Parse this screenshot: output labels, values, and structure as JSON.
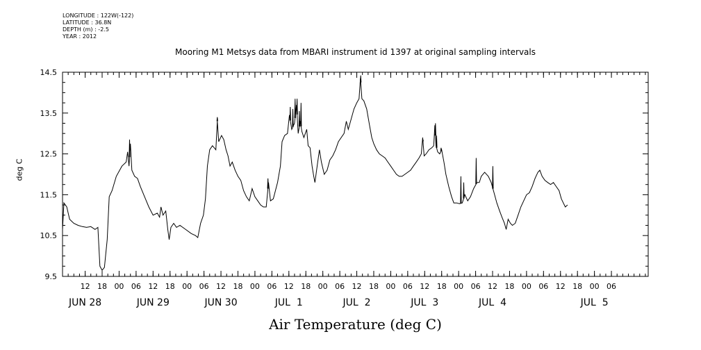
{
  "header": {
    "lines": [
      "LONGITUDE : 122W(-122)",
      "LATITUDE : 36.8N",
      "DEPTH (m) : -2.5",
      "YEAR : 2012"
    ]
  },
  "chart_data": {
    "type": "line",
    "title": "Mooring M1 Metsys data from MBARI instrument id 1397 at original sampling intervals",
    "xlabel": "Air Temperature (deg C)",
    "ylabel": "deg C",
    "ylim": [
      9.5,
      14.5
    ],
    "y_ticks": [
      "9.5",
      "10.5",
      "11.5",
      "12.5",
      "13.5",
      "14.5"
    ],
    "x_range_hours": [
      4,
      211
    ],
    "hour_ticks": [
      {
        "h": 12,
        "label": "12"
      },
      {
        "h": 18,
        "label": "18"
      },
      {
        "h": 24,
        "label": "00"
      },
      {
        "h": 30,
        "label": "06"
      },
      {
        "h": 36,
        "label": "12"
      },
      {
        "h": 42,
        "label": "18"
      },
      {
        "h": 48,
        "label": "00"
      },
      {
        "h": 54,
        "label": "06"
      },
      {
        "h": 60,
        "label": "12"
      },
      {
        "h": 66,
        "label": "18"
      },
      {
        "h": 72,
        "label": "00"
      },
      {
        "h": 78,
        "label": "06"
      },
      {
        "h": 84,
        "label": "12"
      },
      {
        "h": 90,
        "label": "18"
      },
      {
        "h": 96,
        "label": "00"
      },
      {
        "h": 102,
        "label": "06"
      },
      {
        "h": 108,
        "label": "12"
      },
      {
        "h": 114,
        "label": "18"
      },
      {
        "h": 120,
        "label": "00"
      },
      {
        "h": 126,
        "label": "06"
      },
      {
        "h": 132,
        "label": "12"
      },
      {
        "h": 138,
        "label": "18"
      },
      {
        "h": 144,
        "label": "00"
      },
      {
        "h": 150,
        "label": "06"
      },
      {
        "h": 156,
        "label": "12"
      },
      {
        "h": 162,
        "label": "18"
      },
      {
        "h": 168,
        "label": "00"
      },
      {
        "h": 174,
        "label": "06"
      },
      {
        "h": 180,
        "label": "12"
      },
      {
        "h": 186,
        "label": "18"
      },
      {
        "h": 192,
        "label": "00"
      },
      {
        "h": 198,
        "label": "06"
      }
    ],
    "day_labels": [
      {
        "h": 12,
        "label": "JUN 28"
      },
      {
        "h": 36,
        "label": "JUN 29"
      },
      {
        "h": 60,
        "label": "JUN 30"
      },
      {
        "h": 84,
        "label": "JUL  1"
      },
      {
        "h": 108,
        "label": "JUL  2"
      },
      {
        "h": 132,
        "label": "JUL  3"
      },
      {
        "h": 156,
        "label": "JUL  4"
      },
      {
        "h": 192,
        "label": "JUL  5"
      }
    ],
    "series": [
      {
        "values": [
          [
            4.0,
            10.65
          ],
          [
            4.5,
            11.3
          ],
          [
            5.5,
            11.2
          ],
          [
            6.5,
            10.9
          ],
          [
            8,
            10.8
          ],
          [
            9.5,
            10.75
          ],
          [
            11,
            10.72
          ],
          [
            12.5,
            10.7
          ],
          [
            14,
            10.72
          ],
          [
            15.5,
            10.65
          ],
          [
            16.5,
            10.7
          ],
          [
            17.2,
            9.75
          ],
          [
            18,
            9.65
          ],
          [
            18.8,
            9.72
          ],
          [
            19.8,
            10.4
          ],
          [
            20.5,
            11.45
          ],
          [
            21.5,
            11.6
          ],
          [
            23,
            11.95
          ],
          [
            25,
            12.2
          ],
          [
            26.5,
            12.3
          ],
          [
            27,
            12.55
          ],
          [
            27.5,
            12.2
          ],
          [
            28,
            12.75
          ],
          [
            28.5,
            12.1
          ],
          [
            29.5,
            11.95
          ],
          [
            30.5,
            11.9
          ],
          [
            31.5,
            11.7
          ],
          [
            33,
            11.45
          ],
          [
            34.5,
            11.2
          ],
          [
            36,
            11.0
          ],
          [
            37.5,
            11.05
          ],
          [
            38.3,
            10.95
          ],
          [
            38.8,
            11.2
          ],
          [
            39.5,
            11.0
          ],
          [
            40.5,
            11.1
          ],
          [
            41.2,
            10.65
          ],
          [
            41.7,
            10.4
          ],
          [
            42.3,
            10.7
          ],
          [
            43.3,
            10.8
          ],
          [
            44.3,
            10.7
          ],
          [
            45.5,
            10.75
          ],
          [
            47.5,
            10.65
          ],
          [
            49.5,
            10.55
          ],
          [
            51,
            10.5
          ],
          [
            51.8,
            10.45
          ],
          [
            52.8,
            10.8
          ],
          [
            53.8,
            11.0
          ],
          [
            54.5,
            11.4
          ],
          [
            55.2,
            12.2
          ],
          [
            56,
            12.6
          ],
          [
            57,
            12.7
          ],
          [
            58.2,
            12.6
          ],
          [
            58.7,
            13.3
          ],
          [
            59.2,
            12.8
          ],
          [
            60.2,
            12.95
          ],
          [
            61,
            12.85
          ],
          [
            61.8,
            12.6
          ],
          [
            62.5,
            12.45
          ],
          [
            63.2,
            12.2
          ],
          [
            64,
            12.3
          ],
          [
            65,
            12.1
          ],
          [
            66,
            11.95
          ],
          [
            67,
            11.85
          ],
          [
            68,
            11.6
          ],
          [
            69,
            11.45
          ],
          [
            70,
            11.35
          ],
          [
            71,
            11.65
          ],
          [
            72,
            11.45
          ],
          [
            73,
            11.35
          ],
          [
            74,
            11.25
          ],
          [
            75,
            11.2
          ],
          [
            76,
            11.2
          ],
          [
            76.8,
            11.8
          ],
          [
            77.5,
            11.35
          ],
          [
            78.5,
            11.4
          ],
          [
            80,
            11.8
          ],
          [
            81,
            12.2
          ],
          [
            81.6,
            12.8
          ],
          [
            82.5,
            12.95
          ],
          [
            83.5,
            13.0
          ],
          [
            84.2,
            13.45
          ],
          [
            85,
            13.1
          ],
          [
            86,
            13.25
          ],
          [
            86.7,
            13.7
          ],
          [
            87.3,
            13.0
          ],
          [
            88,
            13.3
          ],
          [
            88.6,
            13.05
          ],
          [
            89.3,
            12.9
          ],
          [
            90.3,
            13.1
          ],
          [
            90.8,
            12.7
          ],
          [
            91.5,
            12.65
          ],
          [
            92.2,
            12.2
          ],
          [
            92.8,
            11.95
          ],
          [
            93.2,
            11.8
          ],
          [
            94,
            12.2
          ],
          [
            94.8,
            12.6
          ],
          [
            95.5,
            12.3
          ],
          [
            96.5,
            12.0
          ],
          [
            97.5,
            12.1
          ],
          [
            98.5,
            12.35
          ],
          [
            99.5,
            12.45
          ],
          [
            100.5,
            12.6
          ],
          [
            101.5,
            12.8
          ],
          [
            102.5,
            12.9
          ],
          [
            103.5,
            13.0
          ],
          [
            104.3,
            13.3
          ],
          [
            105,
            13.1
          ],
          [
            106,
            13.35
          ],
          [
            107,
            13.6
          ],
          [
            108,
            13.75
          ],
          [
            108.8,
            13.85
          ],
          [
            109.3,
            14.35
          ],
          [
            109.8,
            13.85
          ],
          [
            110.5,
            13.8
          ],
          [
            111.5,
            13.6
          ],
          [
            112.5,
            13.2
          ],
          [
            113.3,
            12.9
          ],
          [
            114,
            12.75
          ],
          [
            115,
            12.6
          ],
          [
            116,
            12.5
          ],
          [
            117,
            12.45
          ],
          [
            118,
            12.4
          ],
          [
            119,
            12.3
          ],
          [
            120,
            12.2
          ],
          [
            121,
            12.1
          ],
          [
            122,
            12.0
          ],
          [
            123,
            11.95
          ],
          [
            124,
            11.95
          ],
          [
            125,
            12.0
          ],
          [
            126,
            12.05
          ],
          [
            127,
            12.1
          ],
          [
            128,
            12.2
          ],
          [
            129,
            12.3
          ],
          [
            130,
            12.4
          ],
          [
            130.8,
            12.5
          ],
          [
            131.3,
            12.9
          ],
          [
            131.8,
            12.45
          ],
          [
            132.5,
            12.5
          ],
          [
            133.5,
            12.6
          ],
          [
            134.5,
            12.65
          ],
          [
            135.2,
            12.7
          ],
          [
            135.6,
            13.2
          ],
          [
            136,
            12.7
          ],
          [
            136.6,
            12.55
          ],
          [
            137.3,
            12.5
          ],
          [
            138,
            12.6
          ],
          [
            138.8,
            12.3
          ],
          [
            139.5,
            12.0
          ],
          [
            140.5,
            11.7
          ],
          [
            141.5,
            11.45
          ],
          [
            142.3,
            11.3
          ],
          [
            143.3,
            11.3
          ],
          [
            144.3,
            11.28
          ],
          [
            145.3,
            11.3
          ],
          [
            146.2,
            11.5
          ],
          [
            147.2,
            11.35
          ],
          [
            148.2,
            11.45
          ],
          [
            149.3,
            11.65
          ],
          [
            150.5,
            11.8
          ],
          [
            151.3,
            11.8
          ],
          [
            152,
            11.95
          ],
          [
            153.2,
            12.05
          ],
          [
            154.5,
            11.95
          ],
          [
            155.5,
            11.8
          ],
          [
            156.5,
            11.55
          ],
          [
            157.5,
            11.3
          ],
          [
            158.5,
            11.1
          ],
          [
            159.3,
            10.95
          ],
          [
            160.2,
            10.8
          ],
          [
            160.8,
            10.65
          ],
          [
            161.5,
            10.9
          ],
          [
            162.3,
            10.8
          ],
          [
            163,
            10.75
          ],
          [
            164,
            10.8
          ],
          [
            165,
            11.0
          ],
          [
            166,
            11.2
          ],
          [
            167,
            11.35
          ],
          [
            168,
            11.5
          ],
          [
            169,
            11.55
          ],
          [
            170,
            11.7
          ],
          [
            171,
            11.9
          ],
          [
            172,
            12.05
          ],
          [
            172.7,
            12.1
          ],
          [
            173.5,
            11.95
          ],
          [
            174.5,
            11.85
          ],
          [
            175.5,
            11.8
          ],
          [
            176.5,
            11.75
          ],
          [
            177.5,
            11.8
          ],
          [
            178.5,
            11.7
          ],
          [
            179.5,
            11.6
          ],
          [
            180.3,
            11.4
          ],
          [
            181,
            11.3
          ],
          [
            181.7,
            11.2
          ],
          [
            182.5,
            11.25
          ]
        ]
      }
    ],
    "spikes": [
      [
        27.7,
        12.85
      ],
      [
        84.5,
        13.65
      ],
      [
        85.4,
        13.6
      ],
      [
        86.2,
        13.85
      ],
      [
        86.9,
        13.85
      ],
      [
        87.7,
        13.55
      ],
      [
        88.3,
        13.75
      ],
      [
        109.4,
        14.42
      ],
      [
        131.4,
        12.85
      ],
      [
        135.8,
        13.25
      ],
      [
        136.2,
        12.95
      ],
      [
        137.8,
        12.65
      ],
      [
        144.8,
        11.95
      ],
      [
        145.8,
        11.8
      ],
      [
        150.2,
        12.4
      ],
      [
        156.1,
        12.2
      ],
      [
        58.7,
        13.4
      ],
      [
        76.6,
        11.9
      ]
    ],
    "grid": false
  }
}
